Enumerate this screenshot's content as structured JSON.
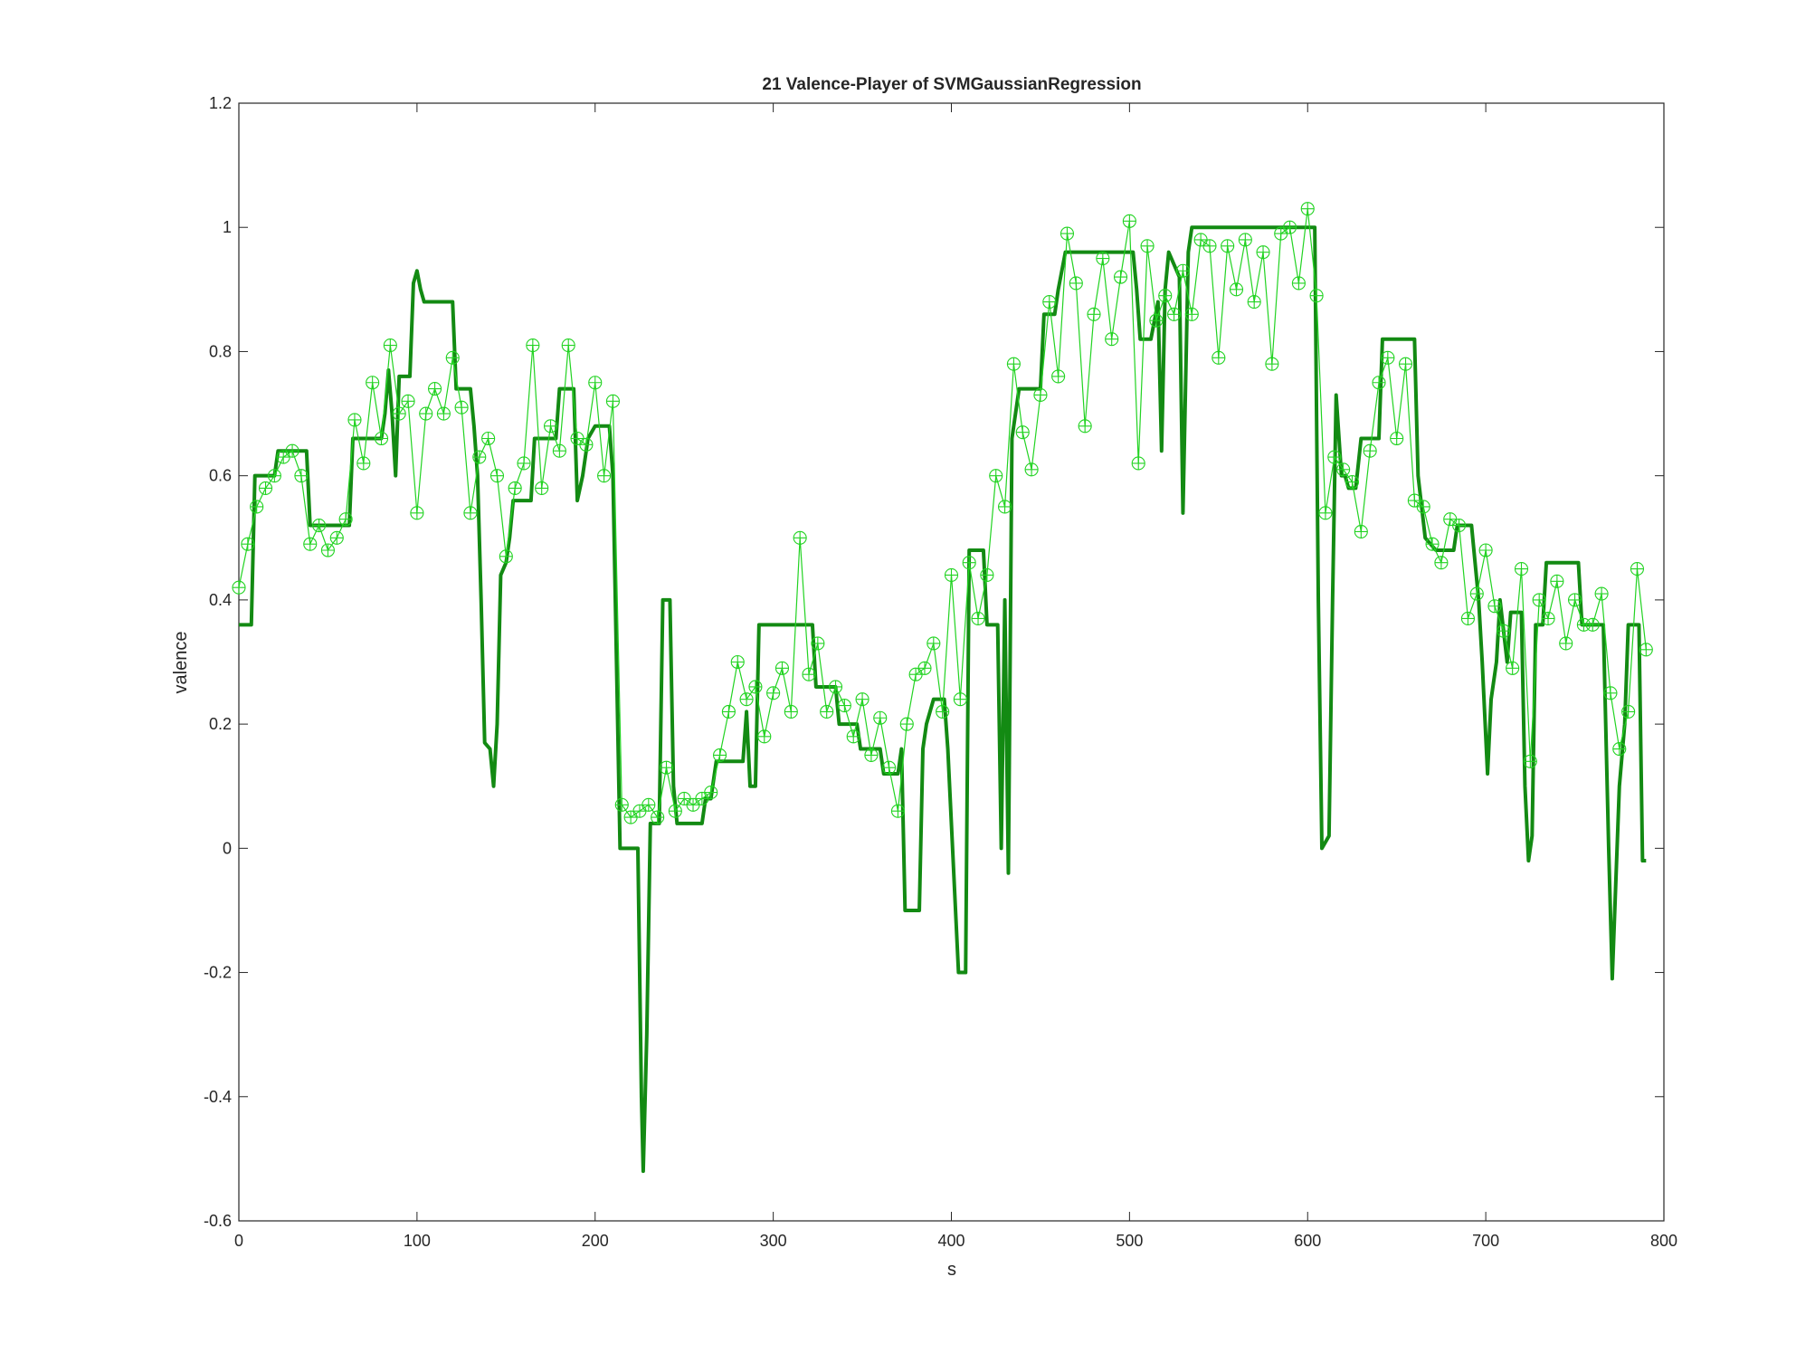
{
  "chart_data": {
    "type": "line",
    "title": "21 Valence-Player of SVMGaussianRegression",
    "xlabel": "s",
    "ylabel": "valence",
    "xlim": [
      0,
      800
    ],
    "xticks": [
      0,
      100,
      200,
      300,
      400,
      500,
      600,
      700,
      800
    ],
    "ylim": [
      -0.6,
      1.2
    ],
    "yticks": [
      -0.6,
      -0.4,
      -0.2,
      0,
      0.2,
      0.4,
      0.6,
      0.8,
      1,
      1.2
    ],
    "grid": false,
    "series": [
      {
        "color": "#138a13",
        "x": [
          0,
          7,
          9,
          20,
          22,
          38,
          40,
          62,
          64,
          80,
          82,
          84,
          86,
          88,
          90,
          96,
          98,
          100,
          102,
          104,
          120,
          122,
          130,
          132,
          134,
          136,
          138,
          141,
          143,
          145,
          147,
          150,
          152,
          154,
          164,
          166,
          178,
          180,
          188,
          190,
          193,
          196,
          200,
          208,
          210,
          212,
          214,
          224,
          226,
          227,
          229,
          231,
          236,
          238,
          242,
          244,
          246,
          260,
          262,
          265,
          268,
          283,
          285,
          287,
          290,
          292,
          322,
          324,
          335,
          337,
          347,
          349,
          360,
          362,
          370,
          372,
          374,
          382,
          384,
          386,
          390,
          396,
          398,
          404,
          408,
          410,
          418,
          420,
          426,
          428,
          430,
          432,
          434,
          438,
          450,
          452,
          458,
          460,
          464,
          502,
          504,
          506,
          512,
          516,
          518,
          520,
          522,
          528,
          530,
          533,
          535,
          604,
          606,
          608,
          612,
          614,
          616,
          619,
          621,
          623,
          627,
          630,
          640,
          642,
          660,
          662,
          666,
          672,
          682,
          684,
          692,
          696,
          698,
          701,
          703,
          706,
          708,
          712,
          714,
          720,
          722,
          724,
          726,
          728,
          732,
          734,
          752,
          754,
          766,
          769,
          771,
          775,
          778,
          780,
          786,
          788,
          790
        ],
        "values": [
          0.36,
          0.36,
          0.6,
          0.6,
          0.64,
          0.64,
          0.52,
          0.52,
          0.66,
          0.66,
          0.7,
          0.77,
          0.7,
          0.6,
          0.76,
          0.76,
          0.91,
          0.93,
          0.9,
          0.88,
          0.88,
          0.74,
          0.74,
          0.68,
          0.6,
          0.4,
          0.17,
          0.16,
          0.1,
          0.2,
          0.44,
          0.46,
          0.5,
          0.56,
          0.56,
          0.66,
          0.66,
          0.74,
          0.74,
          0.56,
          0.6,
          0.66,
          0.68,
          0.68,
          0.6,
          0.3,
          0,
          0,
          -0.4,
          -0.52,
          -0.3,
          0.04,
          0.04,
          0.4,
          0.4,
          0.1,
          0.04,
          0.04,
          0.08,
          0.08,
          0.14,
          0.14,
          0.22,
          0.1,
          0.1,
          0.36,
          0.36,
          0.26,
          0.26,
          0.2,
          0.2,
          0.16,
          0.16,
          0.12,
          0.12,
          0.16,
          -0.1,
          -0.1,
          0.16,
          0.2,
          0.24,
          0.24,
          0.16,
          -0.2,
          -0.2,
          0.48,
          0.48,
          0.36,
          0.36,
          0,
          0.4,
          -0.04,
          0.66,
          0.74,
          0.74,
          0.86,
          0.86,
          0.9,
          0.96,
          0.96,
          0.9,
          0.82,
          0.82,
          0.88,
          0.64,
          0.9,
          0.96,
          0.92,
          0.54,
          0.96,
          1,
          1,
          0.4,
          0,
          0.02,
          0.4,
          0.73,
          0.6,
          0.6,
          0.58,
          0.58,
          0.66,
          0.66,
          0.82,
          0.82,
          0.6,
          0.5,
          0.48,
          0.48,
          0.52,
          0.52,
          0.4,
          0.3,
          0.12,
          0.24,
          0.3,
          0.4,
          0.3,
          0.38,
          0.38,
          0.1,
          -0.02,
          0.02,
          0.36,
          0.36,
          0.46,
          0.46,
          0.36,
          0.36,
          0,
          -0.21,
          0.1,
          0.2,
          0.36,
          0.36,
          -0.02,
          -0.02
        ]
      },
      {
        "color": "#22d322",
        "x": [
          0,
          5,
          10,
          15,
          20,
          25,
          30,
          35,
          40,
          45,
          50,
          55,
          60,
          65,
          70,
          75,
          80,
          85,
          90,
          95,
          100,
          105,
          110,
          115,
          120,
          125,
          130,
          135,
          140,
          145,
          150,
          155,
          160,
          165,
          170,
          175,
          180,
          185,
          190,
          195,
          200,
          205,
          210,
          215,
          220,
          225,
          230,
          235,
          240,
          245,
          250,
          255,
          260,
          265,
          270,
          275,
          280,
          285,
          290,
          295,
          300,
          305,
          310,
          315,
          320,
          325,
          330,
          335,
          340,
          345,
          350,
          355,
          360,
          365,
          370,
          375,
          380,
          385,
          390,
          395,
          400,
          405,
          410,
          415,
          420,
          425,
          430,
          435,
          440,
          445,
          450,
          455,
          460,
          465,
          470,
          475,
          480,
          485,
          490,
          495,
          500,
          505,
          510,
          515,
          520,
          525,
          530,
          535,
          540,
          545,
          550,
          555,
          560,
          565,
          570,
          575,
          580,
          585,
          590,
          595,
          600,
          605,
          610,
          615,
          620,
          625,
          630,
          635,
          640,
          645,
          650,
          655,
          660,
          665,
          670,
          675,
          680,
          685,
          690,
          695,
          700,
          705,
          710,
          715,
          720,
          725,
          730,
          735,
          740,
          745,
          750,
          755,
          760,
          765,
          770,
          775,
          780,
          785,
          790
        ],
        "values": [
          0.42,
          0.49,
          0.55,
          0.58,
          0.6,
          0.63,
          0.64,
          0.6,
          0.49,
          0.52,
          0.48,
          0.5,
          0.53,
          0.69,
          0.62,
          0.75,
          0.66,
          0.81,
          0.7,
          0.72,
          0.54,
          0.7,
          0.74,
          0.7,
          0.79,
          0.71,
          0.54,
          0.63,
          0.66,
          0.6,
          0.47,
          0.58,
          0.62,
          0.81,
          0.58,
          0.68,
          0.64,
          0.81,
          0.66,
          0.65,
          0.75,
          0.6,
          0.72,
          0.07,
          0.05,
          0.06,
          0.07,
          0.05,
          0.13,
          0.06,
          0.08,
          0.07,
          0.08,
          0.09,
          0.15,
          0.22,
          0.3,
          0.24,
          0.26,
          0.18,
          0.25,
          0.29,
          0.22,
          0.5,
          0.28,
          0.33,
          0.22,
          0.26,
          0.23,
          0.18,
          0.24,
          0.15,
          0.21,
          0.13,
          0.06,
          0.2,
          0.28,
          0.29,
          0.33,
          0.22,
          0.44,
          0.24,
          0.46,
          0.37,
          0.44,
          0.6,
          0.55,
          0.78,
          0.67,
          0.61,
          0.73,
          0.88,
          0.76,
          0.99,
          0.91,
          0.68,
          0.86,
          0.95,
          0.82,
          0.92,
          1.01,
          0.62,
          0.97,
          0.85,
          0.89,
          0.86,
          0.93,
          0.86,
          0.98,
          0.97,
          0.79,
          0.97,
          0.9,
          0.98,
          0.88,
          0.96,
          0.78,
          0.99,
          1,
          0.91,
          1.03,
          0.89,
          0.54,
          0.63,
          0.61,
          0.59,
          0.51,
          0.64,
          0.75,
          0.79,
          0.66,
          0.78,
          0.56,
          0.55,
          0.49,
          0.46,
          0.53,
          0.52,
          0.37,
          0.41,
          0.48,
          0.39,
          0.35,
          0.29,
          0.45,
          0.14,
          0.4,
          0.37,
          0.43,
          0.33,
          0.4,
          0.36,
          0.36,
          0.41,
          0.25,
          0.16,
          0.22,
          0.45,
          0.32
        ]
      }
    ]
  }
}
